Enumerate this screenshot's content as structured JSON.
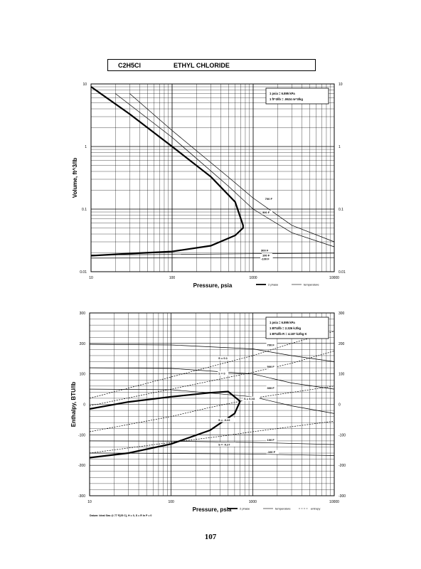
{
  "header": {
    "formula": "C2H5Cl",
    "name": "ETHYL CHLORIDE"
  },
  "page_number": "107",
  "footnote": "Datum: Ideal Gas @ 77 F(25 C), H = 0, S = R ln P = 0",
  "chart_data": [
    {
      "type": "line",
      "xscale": "log",
      "yscale": "log",
      "xlim": [
        10,
        10000
      ],
      "ylim": [
        0.01,
        10
      ],
      "xlabel": "Pressure, psia",
      "ylabel": "Volume, ft^3/lb",
      "xticks": [
        "10",
        "100",
        "1000",
        "10000"
      ],
      "yticks": [
        "10",
        "1",
        "0.1",
        "0.01"
      ],
      "conversion_box": [
        "1 psia = 6.895 kPa",
        "1 ft^3/lb = .0624 m^3/kg"
      ],
      "legend": [
        "2 phase",
        "temperature"
      ],
      "series": [
        {
          "name": "2 phase",
          "x": [
            10,
            30,
            100,
            300,
            600,
            750,
            750,
            600,
            300,
            100,
            30,
            10
          ],
          "y": [
            9,
            3.3,
            1.0,
            0.33,
            0.13,
            0.055,
            0.05,
            0.038,
            0.026,
            0.021,
            0.0195,
            0.018
          ]
        },
        {
          "name": "-100 F",
          "x": [
            10,
            100,
            1000,
            10000
          ],
          "y": [
            0.0165,
            0.0166,
            0.0167,
            0.0168
          ]
        },
        {
          "name": "300 F",
          "x": [
            10,
            100,
            1000,
            10000
          ],
          "y": [
            0.0185,
            0.0189,
            0.0194,
            0.0198
          ]
        },
        {
          "name": "500 F",
          "x": [
            20,
            100,
            500,
            1000,
            3000,
            10000
          ],
          "y": [
            7,
            1.4,
            0.23,
            0.1,
            0.042,
            0.025
          ]
        },
        {
          "name": "700 F",
          "x": [
            30,
            100,
            500,
            1000,
            3000,
            10000
          ],
          "y": [
            7,
            1.8,
            0.32,
            0.15,
            0.055,
            0.03
          ]
        }
      ],
      "annotations": [
        "700 F",
        "500 F",
        "300 F",
        "100 F",
        "-100 F"
      ]
    },
    {
      "type": "line",
      "xscale": "log",
      "yscale": "linear",
      "xlim": [
        10,
        10000
      ],
      "ylim": [
        -300,
        300
      ],
      "xlabel": "Pressure, psia",
      "ylabel": "Enthalpy, BTU/lb",
      "xticks": [
        "10",
        "100",
        "1000",
        "10000"
      ],
      "yticks": [
        "300",
        "200",
        "100",
        "0",
        "-100",
        "-200",
        "-300"
      ],
      "conversion_box": [
        "1 psia = 6.895 kPa",
        "1 BTU/lb = 2.326 kJ/kg",
        "1 BTU/lb R = 4.187 kJ/kg K"
      ],
      "legend": [
        "2 phase",
        "temperature",
        "entropy"
      ],
      "series": [
        {
          "name": "2 phase",
          "x": [
            10,
            30,
            100,
            300,
            500,
            700,
            600,
            300,
            100,
            30,
            10
          ],
          "y": [
            -15,
            8,
            25,
            38,
            42,
            10,
            -30,
            -85,
            -130,
            -160,
            -175
          ]
        },
        {
          "name": "700 F",
          "x": [
            10,
            100,
            1000,
            3000,
            10000
          ],
          "y": [
            197,
            195,
            182,
            160,
            140
          ]
        },
        {
          "name": "500 F",
          "x": [
            10,
            100,
            1000,
            3000,
            10000
          ],
          "y": [
            120,
            118,
            100,
            70,
            50
          ]
        },
        {
          "name": "300 F",
          "x": [
            10,
            100,
            1000,
            3000,
            10000
          ],
          "y": [
            50,
            48,
            25,
            -5,
            -30
          ]
        },
        {
          "name": "100 F",
          "x": [
            10,
            100,
            1000,
            10000
          ],
          "y": [
            -120,
            -121,
            -125,
            -132
          ]
        },
        {
          "name": "-100 F",
          "x": [
            10,
            100,
            1000,
            10000
          ],
          "y": [
            -160,
            -161,
            -163,
            -168
          ]
        },
        {
          "name": "S = 0.1",
          "x": [
            10,
            100,
            1000,
            3000,
            10000
          ],
          "y": [
            20,
            90,
            160,
            200,
            240
          ]
        },
        {
          "name": "S = 0",
          "x": [
            10,
            100,
            1000,
            3000,
            10000
          ],
          "y": [
            -5,
            50,
            105,
            135,
            175
          ]
        },
        {
          "name": "S = -0.22",
          "x": [
            10,
            100,
            300,
            700,
            1000,
            10000
          ],
          "y": [
            -90,
            -40,
            -10,
            10,
            20,
            60
          ]
        },
        {
          "name": "S = -0.27",
          "x": [
            10,
            100,
            400,
            1000,
            10000
          ],
          "y": [
            -160,
            -125,
            -105,
            -90,
            -55
          ]
        }
      ],
      "annotations": [
        "700 F",
        "500 F",
        "300 F",
        "100 F",
        "-100 F",
        "S = 0.1",
        "S = 0",
        "S = -0.22",
        "S = -0.27",
        "S = 0.33"
      ]
    }
  ]
}
